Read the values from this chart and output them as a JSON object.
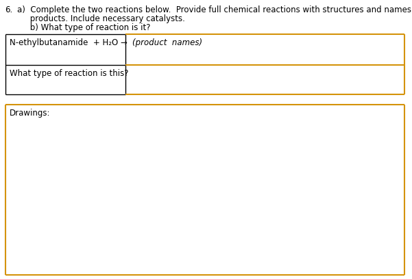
{
  "background_color": "#ffffff",
  "header_line1": "a)  Complete the two reactions below.  Provide full chemical reactions with structures and names of reactants and all",
  "header_line2": "     products. Include necessary catalysts.",
  "header_line3": "     b) What type of reaction is it?",
  "question_number": "6.",
  "reaction_label": "N-ethylbutanamide  + H₂O →",
  "product_label": "(product  names)",
  "reaction_type_label": "What type of reaction is this?",
  "drawings_label": "Drawings:",
  "orange_color": "#D4930A",
  "black_color": "#000000",
  "font_size": 8.5
}
